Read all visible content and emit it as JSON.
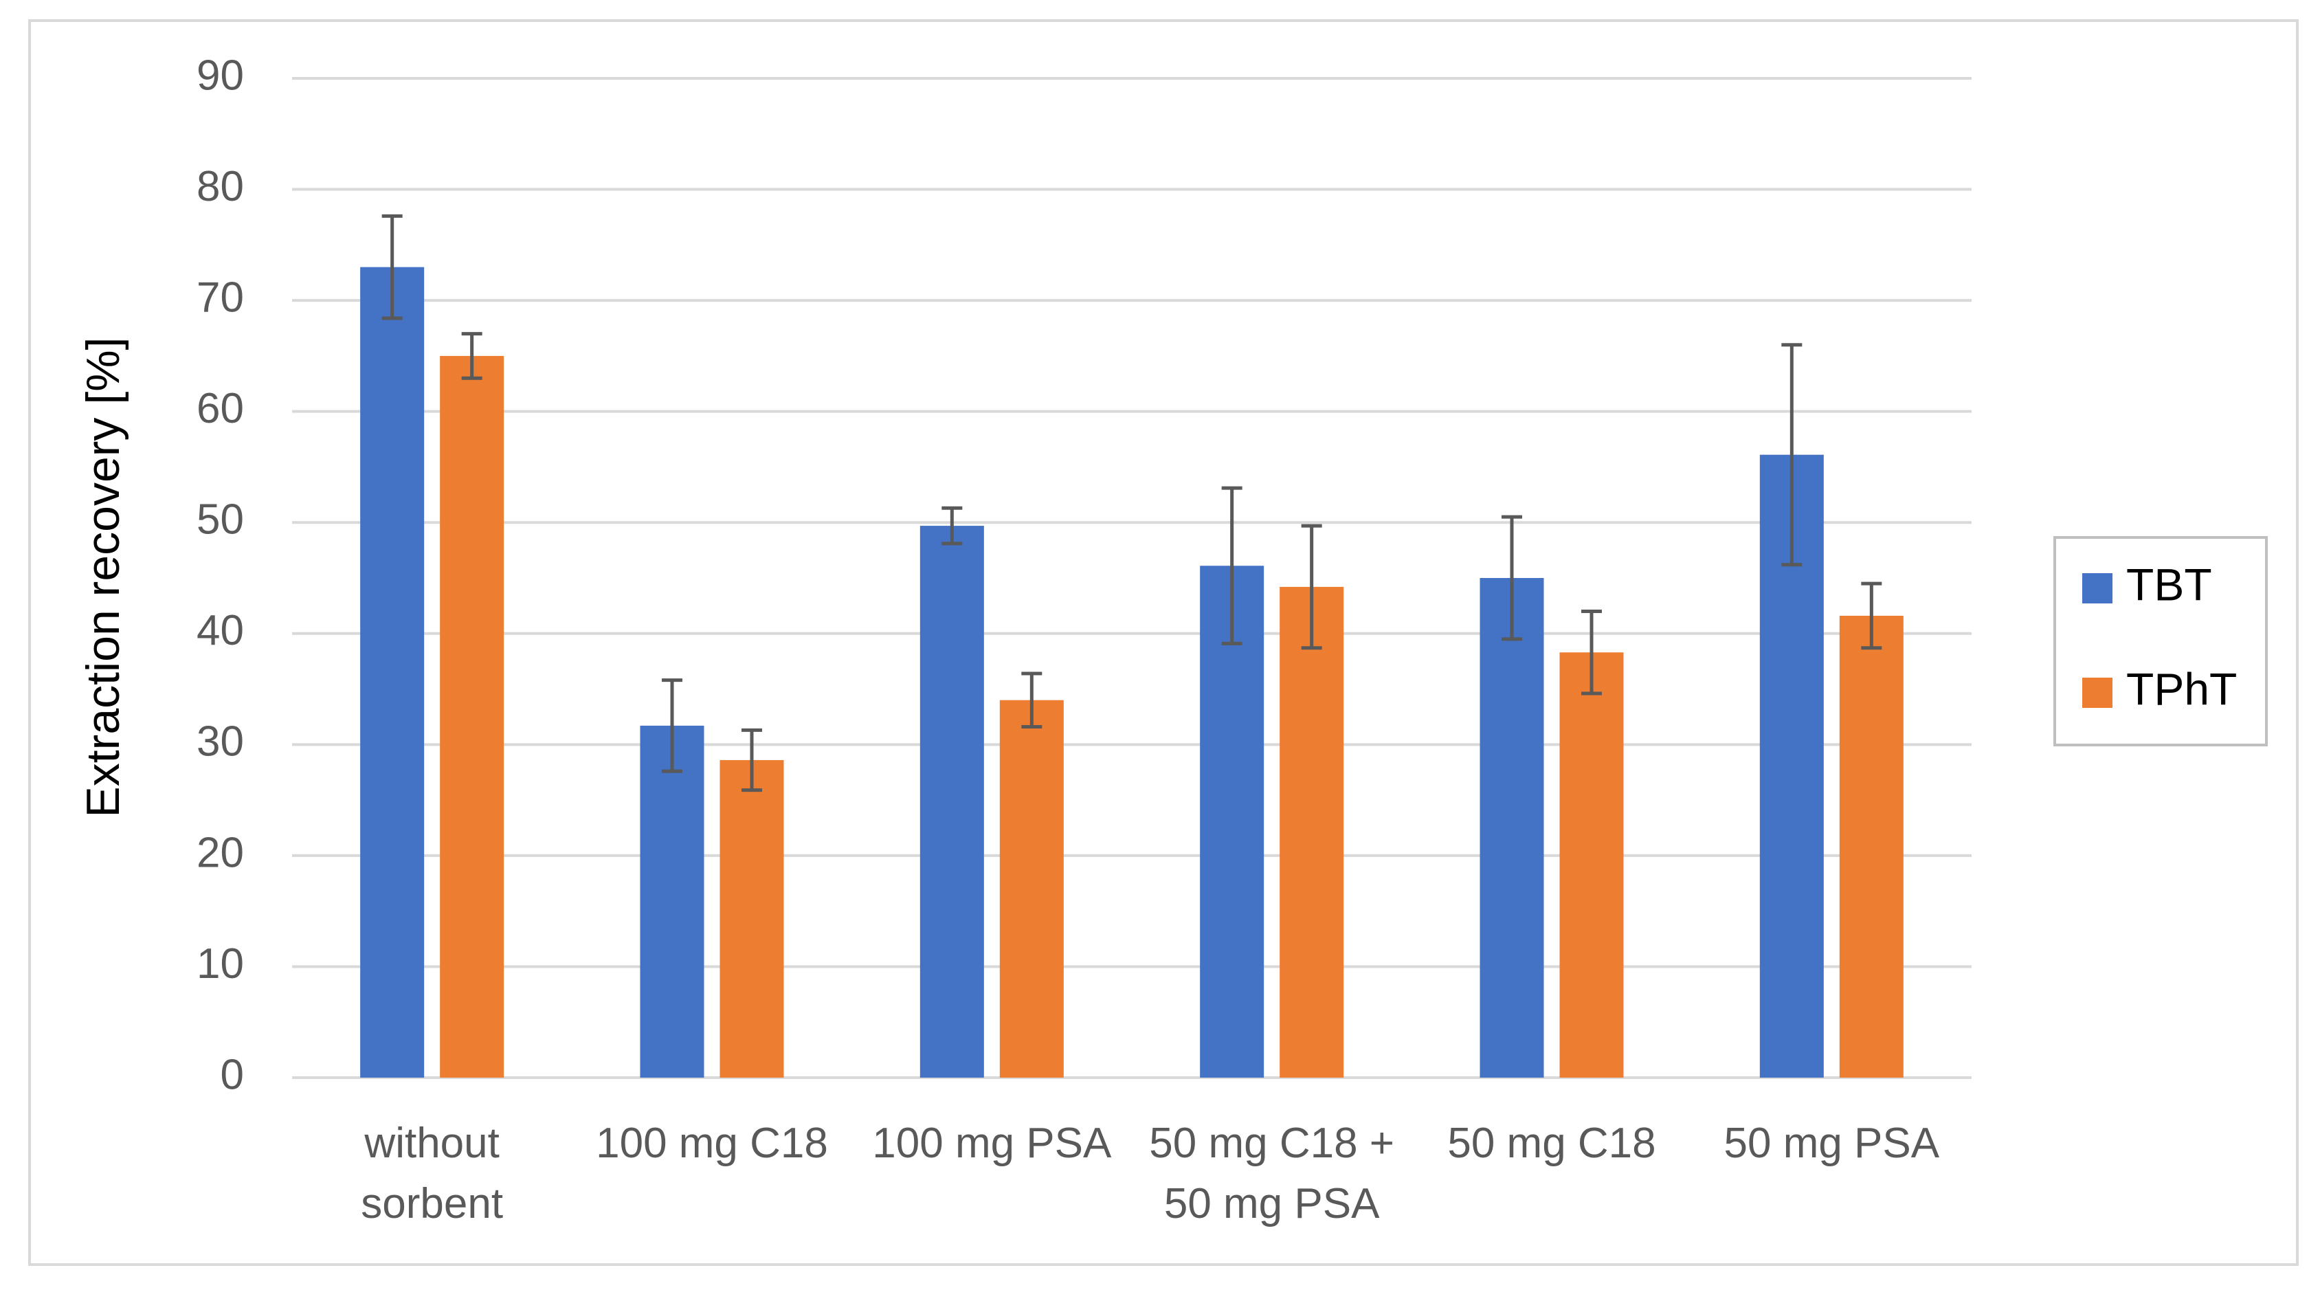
{
  "chart_data": {
    "type": "bar",
    "y_label": "Extraction recovery [%]",
    "categories": [
      "without\nsorbent",
      "100 mg C18",
      "100 mg PSA",
      "50 mg C18 +\n50 mg PSA",
      "50 mg C18",
      "50 mg PSA"
    ],
    "series": [
      {
        "name": "TBT",
        "color": "#4472c4",
        "values": [
          73,
          31.7,
          49.7,
          46.1,
          45,
          56.1
        ],
        "errors": [
          4.6,
          4.1,
          1.6,
          7,
          5.5,
          9.9
        ]
      },
      {
        "name": "TPhT",
        "color": "#ed7d31",
        "values": [
          65,
          28.6,
          34,
          44.2,
          38.3,
          41.6
        ],
        "errors": [
          2,
          2.7,
          2.4,
          5.5,
          3.7,
          2.9
        ]
      }
    ],
    "ylim": [
      0,
      90
    ],
    "yticks": [
      0,
      10,
      20,
      30,
      40,
      50,
      60,
      70,
      80,
      90
    ],
    "grid": true,
    "legend": "right"
  }
}
